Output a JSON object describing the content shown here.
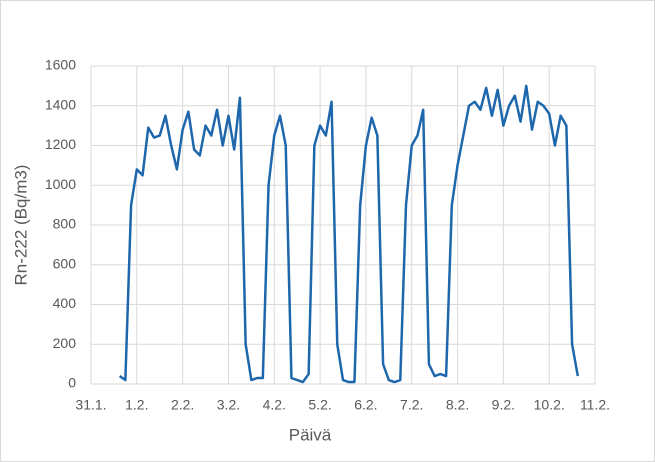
{
  "chart_data": {
    "type": "line",
    "x_title": "Päivä",
    "y_title": "Rn-222 (Bq/m3)",
    "x": [
      0.625,
      0.75,
      0.875,
      1,
      1.125,
      1.25,
      1.375,
      1.5,
      1.625,
      1.75,
      1.875,
      2,
      2.125,
      2.25,
      2.375,
      2.5,
      2.625,
      2.75,
      2.875,
      3,
      3.125,
      3.25,
      3.375,
      3.5,
      3.625,
      3.75,
      3.875,
      4,
      4.125,
      4.25,
      4.375,
      4.5,
      4.625,
      4.75,
      4.875,
      5,
      5.125,
      5.25,
      5.375,
      5.5,
      5.625,
      5.75,
      5.875,
      6,
      6.125,
      6.25,
      6.375,
      6.5,
      6.625,
      6.75,
      6.875,
      7,
      7.125,
      7.25,
      7.375,
      7.5,
      7.625,
      7.75,
      7.875,
      8,
      8.125,
      8.25,
      8.375,
      8.5,
      8.625,
      8.75,
      8.875,
      9,
      9.125,
      9.25,
      9.375,
      9.5,
      9.625,
      9.75,
      9.875,
      10,
      10.125,
      10.25,
      10.375,
      10.5,
      10.625
    ],
    "series": [
      {
        "color": "#1f67ad",
        "values": [
          40,
          20,
          900,
          1080,
          1050,
          1290,
          1240,
          1250,
          1350,
          1200,
          1080,
          1280,
          1370,
          1180,
          1150,
          1300,
          1250,
          1380,
          1200,
          1350,
          1180,
          1440,
          200,
          20,
          30,
          30,
          1000,
          1250,
          1350,
          1200,
          30,
          20,
          10,
          50,
          1200,
          1300,
          1250,
          1420,
          200,
          20,
          10,
          10,
          900,
          1200,
          1340,
          1250,
          100,
          20,
          10,
          20,
          900,
          1200,
          1250,
          1380,
          100,
          40,
          50,
          40,
          900,
          1100,
          1250,
          1400,
          1420,
          1380,
          1490,
          1350,
          1480,
          1300,
          1400,
          1450,
          1320,
          1500,
          1280,
          1420,
          1400,
          1360,
          1200,
          1350,
          1300,
          200,
          40
        ]
      }
    ],
    "xlim": [
      0,
      11
    ],
    "xticks": [
      {
        "value": 0,
        "label": "31.1."
      },
      {
        "value": 1,
        "label": "1.2."
      },
      {
        "value": 2,
        "label": "2.2."
      },
      {
        "value": 3,
        "label": "3.2."
      },
      {
        "value": 4,
        "label": "4.2."
      },
      {
        "value": 5,
        "label": "5.2."
      },
      {
        "value": 6,
        "label": "6.2."
      },
      {
        "value": 7,
        "label": "7.2."
      },
      {
        "value": 8,
        "label": "8.2."
      },
      {
        "value": 9,
        "label": "9.2."
      },
      {
        "value": 10,
        "label": "10.2."
      },
      {
        "value": 11,
        "label": "11.2."
      }
    ],
    "ylim": [
      0,
      1600
    ],
    "yticks": [
      0,
      200,
      400,
      600,
      800,
      1000,
      1200,
      1400,
      1600
    ],
    "grid": true
  }
}
